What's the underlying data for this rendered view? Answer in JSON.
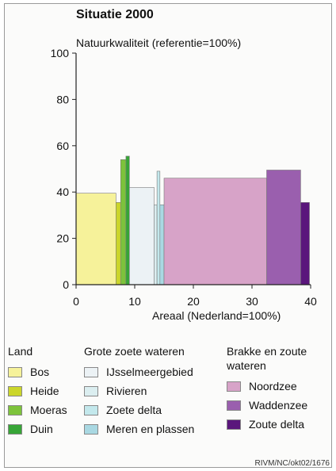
{
  "chart_data": {
    "type": "bar",
    "title": "Situatie 2000",
    "ylabel": "Natuurkwaliteit (referentie=100%)",
    "xlabel": "Areaal (Nederland=100%)",
    "xlim": [
      0,
      40
    ],
    "ylim": [
      0,
      100
    ],
    "x_ticks": [
      "0",
      "10",
      "20",
      "30",
      "40"
    ],
    "y_ticks": [
      "0",
      "20",
      "40",
      "60",
      "80",
      "100"
    ],
    "bars": [
      {
        "name": "Bos",
        "x0": 0,
        "x1": 6.8,
        "y": 39.5,
        "color": "#f6f29a"
      },
      {
        "name": "Heide",
        "x0": 6.8,
        "x1": 7.6,
        "y": 35.5,
        "color": "#cbd62a"
      },
      {
        "name": "Moeras",
        "x0": 7.6,
        "x1": 8.5,
        "y": 54,
        "color": "#7dc33b"
      },
      {
        "name": "Duin",
        "x0": 8.5,
        "x1": 9.1,
        "y": 55.5,
        "color": "#37a537"
      },
      {
        "name": "IJsselmeergebied",
        "x0": 9.1,
        "x1": 13.3,
        "y": 42,
        "color": "#ecf2f5"
      },
      {
        "name": "Rivieren",
        "x0": 13.3,
        "x1": 13.8,
        "y": 34.5,
        "color": "#dbeef0"
      },
      {
        "name": "Zoete delta",
        "x0": 13.8,
        "x1": 14.3,
        "y": 49,
        "color": "#c3e8ec"
      },
      {
        "name": "Meren en plassen",
        "x0": 14.3,
        "x1": 15.0,
        "y": 34.5,
        "color": "#a9d8e2"
      },
      {
        "name": "Noordzee",
        "x0": 15.0,
        "x1": 32.5,
        "y": 46,
        "color": "#d7a3c8"
      },
      {
        "name": "Waddenzee",
        "x0": 32.5,
        "x1": 38.3,
        "y": 49.5,
        "color": "#9a5fae"
      },
      {
        "name": "Zoute delta",
        "x0": 38.3,
        "x1": 39.8,
        "y": 35.5,
        "color": "#5a167c"
      }
    ],
    "grid": false,
    "legend": {
      "groups": [
        {
          "title": "Land",
          "items": [
            "Bos",
            "Heide",
            "Moeras",
            "Duin"
          ]
        },
        {
          "title": "Grote zoete wateren",
          "items": [
            "IJsselmeergebied",
            "Rivieren",
            "Zoete delta",
            "Meren en plassen"
          ]
        },
        {
          "title": "Brakke en zoute wateren",
          "items": [
            "Noordzee",
            "Waddenzee",
            "Zoute delta"
          ]
        }
      ],
      "placement": "bottom"
    }
  },
  "credit": "RIVM/NC/okt02/1676"
}
